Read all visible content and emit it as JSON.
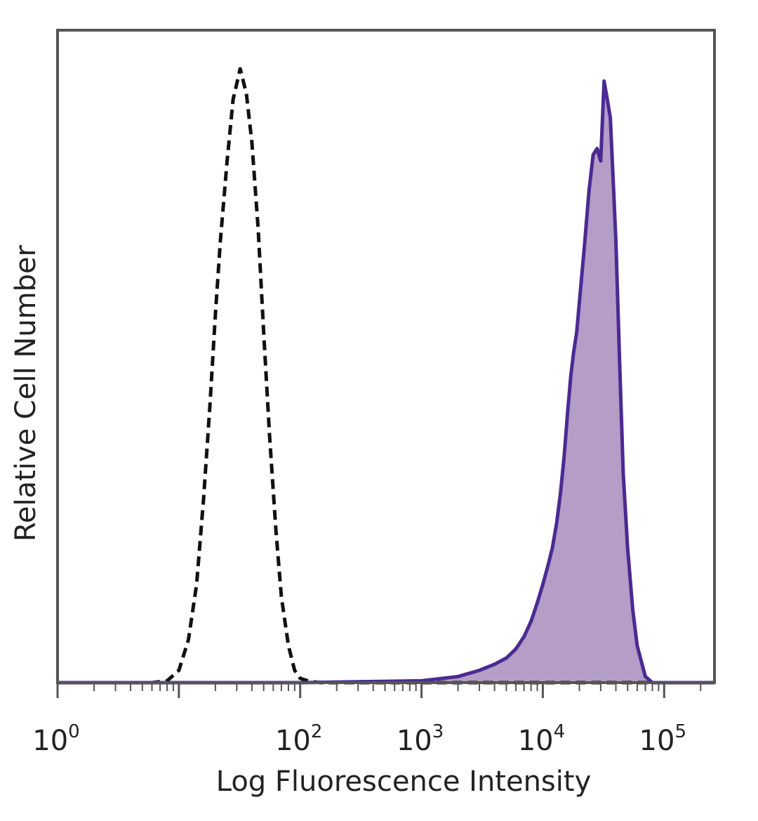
{
  "chart_data": {
    "type": "area",
    "xlabel": "Log Fluorescence Intensity",
    "ylabel": "Relative Cell Number",
    "x_scale": "log",
    "xlim": [
      1,
      260000
    ],
    "ylim": [
      0,
      1.0
    ],
    "grid": false,
    "x_ticks": [
      {
        "value": 1,
        "base": "10",
        "exp": "0"
      },
      {
        "value": 100,
        "base": "10",
        "exp": "2"
      },
      {
        "value": 1000,
        "base": "10",
        "exp": "3"
      },
      {
        "value": 10000,
        "base": "10",
        "exp": "4"
      },
      {
        "value": 100000,
        "base": "10",
        "exp": "5"
      }
    ],
    "series": [
      {
        "style": "dashed",
        "color": "#111111",
        "filled": false,
        "x": [
          1,
          3,
          6,
          8,
          10,
          12,
          14,
          16,
          18,
          20,
          22,
          25,
          28,
          32,
          36,
          40,
          45,
          50,
          56,
          63,
          70,
          80,
          90,
          100,
          120,
          150,
          200,
          500,
          1000,
          5000,
          20000,
          100000,
          260000
        ],
        "y": [
          0.0,
          0.0,
          0.0,
          0.003,
          0.02,
          0.07,
          0.16,
          0.3,
          0.45,
          0.6,
          0.72,
          0.85,
          0.95,
          1.0,
          0.96,
          0.88,
          0.74,
          0.57,
          0.4,
          0.25,
          0.14,
          0.06,
          0.02,
          0.007,
          0.002,
          0.0,
          0.0,
          0.0,
          0.0,
          0.0,
          0.0,
          0.0,
          0.0
        ]
      },
      {
        "style": "solid",
        "color": "#4a2a92",
        "fill": "#b49dc6",
        "filled": true,
        "x": [
          1,
          100,
          1000,
          2000,
          3000,
          4000,
          5000,
          6000,
          7000,
          8000,
          9000,
          10000,
          11000,
          12000,
          13000,
          14000,
          15000,
          16000,
          17000,
          18000,
          19000,
          20000,
          22000,
          24000,
          26000,
          28000,
          30000,
          32000,
          34000,
          36000,
          38000,
          40000,
          43000,
          46000,
          50000,
          55000,
          60000,
          70000,
          80000,
          100000,
          260000
        ],
        "y": [
          0.0,
          0.0,
          0.003,
          0.01,
          0.02,
          0.03,
          0.04,
          0.055,
          0.075,
          0.1,
          0.13,
          0.16,
          0.19,
          0.22,
          0.26,
          0.31,
          0.37,
          0.44,
          0.5,
          0.54,
          0.57,
          0.62,
          0.71,
          0.8,
          0.86,
          0.87,
          0.85,
          0.98,
          0.95,
          0.92,
          0.82,
          0.72,
          0.52,
          0.34,
          0.22,
          0.12,
          0.06,
          0.01,
          0.0,
          0.0,
          0.0
        ]
      }
    ]
  }
}
